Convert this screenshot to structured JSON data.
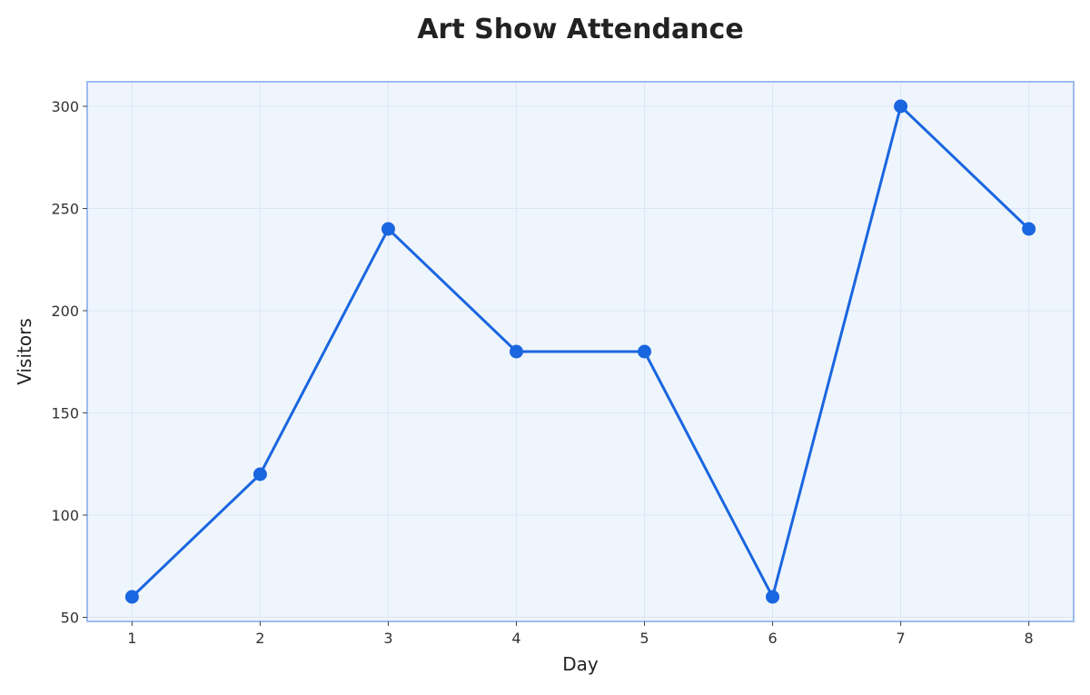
{
  "chart_data": {
    "type": "line",
    "title": "Art Show Attendance",
    "xlabel": "Day",
    "ylabel": "Visitors",
    "x": [
      1,
      2,
      3,
      4,
      5,
      6,
      7,
      8
    ],
    "series": [
      {
        "values": [
          60,
          120,
          240,
          180,
          180,
          60,
          300,
          240
        ],
        "color": "#1a66e0"
      }
    ],
    "xlim": [
      0.65,
      8.35
    ],
    "ylim": [
      48,
      312
    ],
    "xticks": [
      "1",
      "2",
      "3",
      "4",
      "5",
      "6",
      "7",
      "8"
    ],
    "yticks": [
      50,
      100,
      150,
      200,
      250,
      300
    ],
    "grid": true,
    "legend": "none"
  },
  "colors": {
    "plot_background": "#eff5fc",
    "plot_border": "#9dbcf0",
    "grid": "#dce6f7",
    "line": "#1a66e0",
    "marker": "#1a66e0"
  }
}
